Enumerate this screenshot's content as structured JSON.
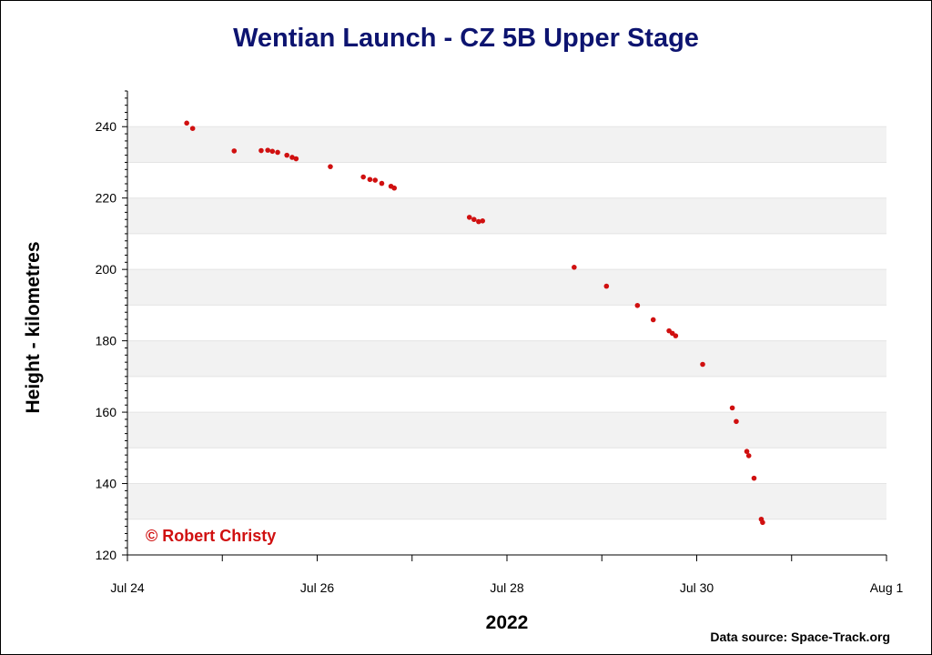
{
  "chart_data": {
    "type": "scatter",
    "title": "Wentian Launch - CZ 5B Upper Stage",
    "xlabel": "2022",
    "ylabel": "Height - kilometres",
    "xlim": [
      "Jul 24",
      "Aug 1"
    ],
    "ylim": [
      120,
      250
    ],
    "x_ticks": [
      "Jul 24",
      "Jul 26",
      "Jul 28",
      "Jul 30",
      "Aug 1"
    ],
    "y_ticks": [
      120,
      140,
      160,
      180,
      200,
      220,
      240
    ],
    "grid": "horizontal alternating bands",
    "marker_color": "#d01010",
    "band_color": "#f2f2f2",
    "points": [
      {
        "x": "Jul 24 15:00",
        "y": 241.0
      },
      {
        "x": "Jul 24 16:30",
        "y": 239.5
      },
      {
        "x": "Jul 25 03:00",
        "y": 233.2
      },
      {
        "x": "Jul 25 09:50",
        "y": 233.3
      },
      {
        "x": "Jul 25 11:30",
        "y": 233.4
      },
      {
        "x": "Jul 25 12:40",
        "y": 233.1
      },
      {
        "x": "Jul 25 14:00",
        "y": 232.8
      },
      {
        "x": "Jul 25 16:20",
        "y": 232.0
      },
      {
        "x": "Jul 25 17:40",
        "y": 231.4
      },
      {
        "x": "Jul 25 18:40",
        "y": 231.0
      },
      {
        "x": "Jul 26 03:20",
        "y": 228.8
      },
      {
        "x": "Jul 26 11:40",
        "y": 225.9
      },
      {
        "x": "Jul 26 13:20",
        "y": 225.2
      },
      {
        "x": "Jul 26 14:40",
        "y": 225.0
      },
      {
        "x": "Jul 26 16:20",
        "y": 224.1
      },
      {
        "x": "Jul 26 18:40",
        "y": 223.3
      },
      {
        "x": "Jul 26 19:30",
        "y": 222.8
      },
      {
        "x": "Jul 27 14:30",
        "y": 214.6
      },
      {
        "x": "Jul 27 15:40",
        "y": 214.0
      },
      {
        "x": "Jul 27 16:50",
        "y": 213.4
      },
      {
        "x": "Jul 27 17:50",
        "y": 213.6
      },
      {
        "x": "Jul 28 17:00",
        "y": 200.6
      },
      {
        "x": "Jul 29 01:10",
        "y": 195.3
      },
      {
        "x": "Jul 29 09:00",
        "y": 189.9
      },
      {
        "x": "Jul 29 13:00",
        "y": 185.9
      },
      {
        "x": "Jul 29 17:00",
        "y": 182.8
      },
      {
        "x": "Jul 29 17:50",
        "y": 182.1
      },
      {
        "x": "Jul 29 18:40",
        "y": 181.4
      },
      {
        "x": "Jul 30 01:30",
        "y": 173.4
      },
      {
        "x": "Jul 30 09:00",
        "y": 161.2
      },
      {
        "x": "Jul 30 10:00",
        "y": 157.4
      },
      {
        "x": "Jul 30 12:40",
        "y": 149.0
      },
      {
        "x": "Jul 30 13:10",
        "y": 147.8
      },
      {
        "x": "Jul 30 14:30",
        "y": 141.5
      },
      {
        "x": "Jul 30 16:20",
        "y": 130.0
      },
      {
        "x": "Jul 30 16:40",
        "y": 129.1
      }
    ]
  },
  "copyright": "© Robert Christy",
  "source": "Data source: Space-Track.org"
}
